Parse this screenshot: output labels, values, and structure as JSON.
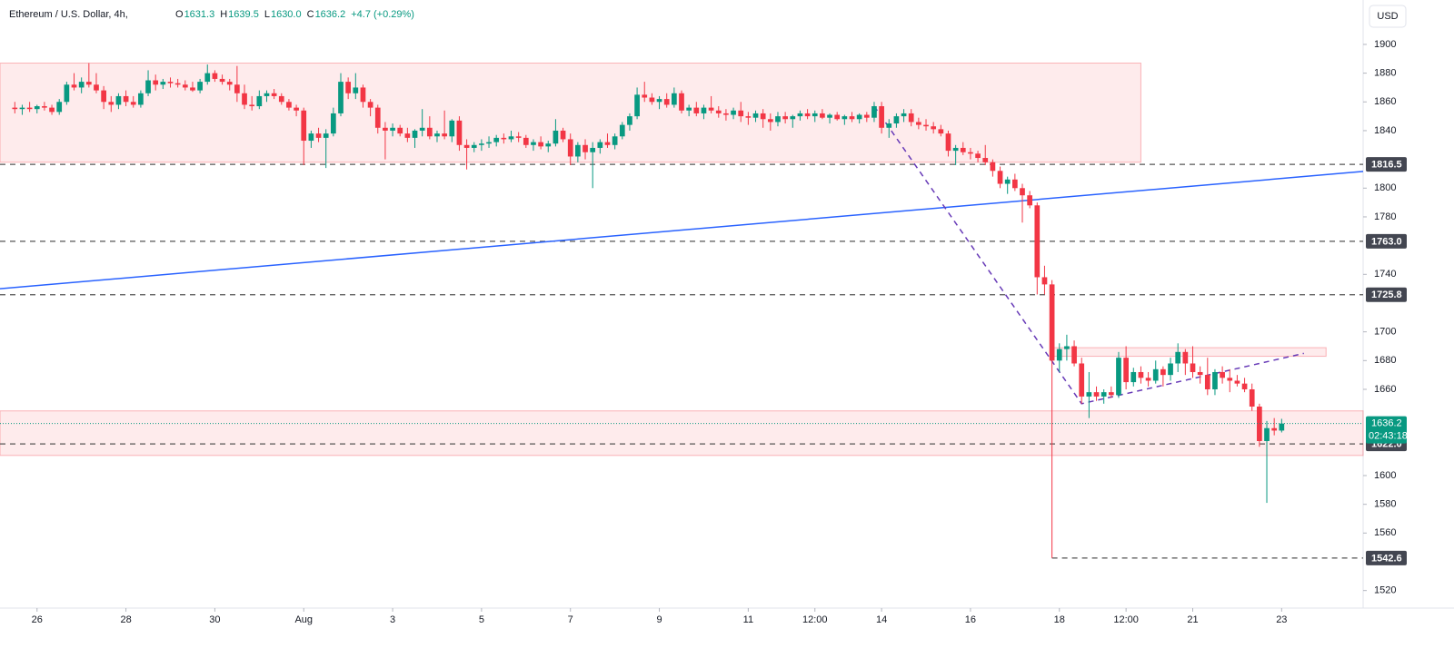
{
  "header": {
    "symbol": "Ethereum / U.S. Dollar, 4h,",
    "ohlc": [
      {
        "label": "O",
        "value": "1631.3"
      },
      {
        "label": "H",
        "value": "1639.5"
      },
      {
        "label": "L",
        "value": "1630.0"
      },
      {
        "label": "C",
        "value": "1636.2"
      }
    ],
    "change": "+4.7 (+0.29%)",
    "currency": "USD"
  },
  "chart_data": {
    "type": "candlestick",
    "up_color": "#089981",
    "down_color": "#f23645",
    "ylim": [
      1507.8,
      1930.9
    ],
    "yticks": [
      1520,
      1560,
      1580,
      1600,
      1660,
      1680,
      1700,
      1740,
      1780,
      1800,
      1840,
      1860,
      1880,
      1900
    ],
    "xlim": [
      -2,
      182
    ],
    "xticks": [
      {
        "value": 3,
        "label": "26"
      },
      {
        "value": 15,
        "label": "28"
      },
      {
        "value": 27,
        "label": "30"
      },
      {
        "value": 39,
        "label": "Aug"
      },
      {
        "value": 51,
        "label": "3"
      },
      {
        "value": 63,
        "label": "5"
      },
      {
        "value": 75,
        "label": "7"
      },
      {
        "value": 87,
        "label": "9"
      },
      {
        "value": 99,
        "label": "11"
      },
      {
        "value": 108,
        "label": "12:00"
      },
      {
        "value": 117,
        "label": "14"
      },
      {
        "value": 129,
        "label": "16"
      },
      {
        "value": 141,
        "label": "18"
      },
      {
        "value": 150,
        "label": "12:00"
      },
      {
        "value": 159,
        "label": "21"
      },
      {
        "value": 171,
        "label": "23"
      }
    ],
    "grid": false,
    "candles": [
      [
        1856,
        1860,
        1852,
        1855
      ],
      [
        1855,
        1858,
        1851,
        1856
      ],
      [
        1856,
        1860,
        1853,
        1855
      ],
      [
        1855,
        1858,
        1852,
        1857
      ],
      [
        1857,
        1860,
        1854,
        1856
      ],
      [
        1856,
        1858,
        1851,
        1853
      ],
      [
        1853,
        1862,
        1851,
        1860
      ],
      [
        1860,
        1874,
        1858,
        1872
      ],
      [
        1872,
        1880,
        1868,
        1870
      ],
      [
        1870,
        1877,
        1866,
        1874
      ],
      [
        1874,
        1887,
        1870,
        1872
      ],
      [
        1872,
        1880,
        1866,
        1868
      ],
      [
        1868,
        1871,
        1855,
        1860
      ],
      [
        1860,
        1864,
        1853,
        1858
      ],
      [
        1858,
        1866,
        1855,
        1864
      ],
      [
        1864,
        1868,
        1857,
        1860
      ],
      [
        1860,
        1864,
        1856,
        1858
      ],
      [
        1858,
        1868,
        1856,
        1866
      ],
      [
        1866,
        1882,
        1864,
        1875
      ],
      [
        1875,
        1879,
        1868,
        1872
      ],
      [
        1872,
        1876,
        1869,
        1874
      ],
      [
        1874,
        1877,
        1870,
        1873
      ],
      [
        1873,
        1876,
        1870,
        1872
      ],
      [
        1872,
        1875,
        1868,
        1870
      ],
      [
        1870,
        1874,
        1867,
        1868
      ],
      [
        1868,
        1876,
        1866,
        1874
      ],
      [
        1874,
        1886,
        1872,
        1880
      ],
      [
        1880,
        1882,
        1874,
        1876
      ],
      [
        1876,
        1879,
        1872,
        1874
      ],
      [
        1874,
        1876,
        1868,
        1872
      ],
      [
        1872,
        1885,
        1860,
        1866
      ],
      [
        1866,
        1872,
        1855,
        1858
      ],
      [
        1858,
        1864,
        1854,
        1857
      ],
      [
        1857,
        1868,
        1855,
        1864
      ],
      [
        1864,
        1868,
        1860,
        1866
      ],
      [
        1866,
        1869,
        1862,
        1864
      ],
      [
        1864,
        1866,
        1858,
        1860
      ],
      [
        1860,
        1862,
        1854,
        1856
      ],
      [
        1856,
        1858,
        1850,
        1854
      ],
      [
        1854,
        1856,
        1816,
        1833
      ],
      [
        1833,
        1840,
        1828,
        1838
      ],
      [
        1838,
        1842,
        1832,
        1835
      ],
      [
        1835,
        1841,
        1814,
        1838
      ],
      [
        1838,
        1856,
        1836,
        1852
      ],
      [
        1852,
        1880,
        1850,
        1874
      ],
      [
        1874,
        1877,
        1862,
        1866
      ],
      [
        1866,
        1880,
        1862,
        1870
      ],
      [
        1870,
        1872,
        1856,
        1860
      ],
      [
        1860,
        1862,
        1850,
        1856
      ],
      [
        1856,
        1858,
        1838,
        1842
      ],
      [
        1842,
        1846,
        1820,
        1840
      ],
      [
        1840,
        1845,
        1836,
        1842
      ],
      [
        1842,
        1844,
        1836,
        1838
      ],
      [
        1838,
        1842,
        1832,
        1835
      ],
      [
        1835,
        1841,
        1828,
        1840
      ],
      [
        1840,
        1855,
        1836,
        1842
      ],
      [
        1842,
        1850,
        1834,
        1836
      ],
      [
        1836,
        1840,
        1832,
        1838
      ],
      [
        1838,
        1854,
        1834,
        1836
      ],
      [
        1836,
        1848,
        1832,
        1847
      ],
      [
        1847,
        1850,
        1826,
        1830
      ],
      [
        1830,
        1834,
        1813,
        1828
      ],
      [
        1828,
        1832,
        1825,
        1830
      ],
      [
        1830,
        1834,
        1826,
        1831
      ],
      [
        1831,
        1836,
        1828,
        1832
      ],
      [
        1832,
        1837,
        1829,
        1835
      ],
      [
        1835,
        1838,
        1831,
        1834
      ],
      [
        1834,
        1840,
        1832,
        1836
      ],
      [
        1836,
        1839,
        1832,
        1835
      ],
      [
        1835,
        1837,
        1828,
        1830
      ],
      [
        1830,
        1834,
        1826,
        1832
      ],
      [
        1832,
        1836,
        1827,
        1829
      ],
      [
        1829,
        1833,
        1825,
        1831
      ],
      [
        1831,
        1848,
        1829,
        1840
      ],
      [
        1840,
        1842,
        1832,
        1834
      ],
      [
        1834,
        1838,
        1816,
        1822
      ],
      [
        1822,
        1832,
        1818,
        1830
      ],
      [
        1830,
        1834,
        1820,
        1825
      ],
      [
        1825,
        1832,
        1800,
        1828
      ],
      [
        1828,
        1834,
        1824,
        1832
      ],
      [
        1832,
        1838,
        1828,
        1830
      ],
      [
        1830,
        1838,
        1827,
        1836
      ],
      [
        1836,
        1846,
        1834,
        1844
      ],
      [
        1844,
        1852,
        1840,
        1850
      ],
      [
        1850,
        1870,
        1848,
        1865
      ],
      [
        1865,
        1874,
        1860,
        1863
      ],
      [
        1863,
        1866,
        1858,
        1860
      ],
      [
        1860,
        1864,
        1855,
        1862
      ],
      [
        1862,
        1866,
        1856,
        1858
      ],
      [
        1858,
        1870,
        1856,
        1866
      ],
      [
        1866,
        1868,
        1852,
        1854
      ],
      [
        1854,
        1858,
        1850,
        1856
      ],
      [
        1856,
        1860,
        1850,
        1852
      ],
      [
        1852,
        1858,
        1848,
        1856
      ],
      [
        1856,
        1864,
        1852,
        1854
      ],
      [
        1854,
        1857,
        1849,
        1852
      ],
      [
        1852,
        1855,
        1847,
        1851
      ],
      [
        1851,
        1856,
        1848,
        1854
      ],
      [
        1854,
        1860,
        1846,
        1850
      ],
      [
        1850,
        1853,
        1844,
        1849
      ],
      [
        1849,
        1854,
        1846,
        1852
      ],
      [
        1852,
        1855,
        1842,
        1848
      ],
      [
        1848,
        1852,
        1840,
        1846
      ],
      [
        1846,
        1853,
        1843,
        1850
      ],
      [
        1850,
        1853,
        1845,
        1848
      ],
      [
        1848,
        1851,
        1842,
        1850
      ],
      [
        1850,
        1854,
        1847,
        1852
      ],
      [
        1852,
        1855,
        1848,
        1850
      ],
      [
        1850,
        1854,
        1846,
        1852
      ],
      [
        1852,
        1855,
        1848,
        1849
      ],
      [
        1849,
        1852,
        1845,
        1851
      ],
      [
        1851,
        1853,
        1847,
        1848
      ],
      [
        1848,
        1851,
        1844,
        1850
      ],
      [
        1850,
        1853,
        1846,
        1848
      ],
      [
        1848,
        1852,
        1845,
        1851
      ],
      [
        1851,
        1853,
        1846,
        1849
      ],
      [
        1849,
        1860,
        1846,
        1857
      ],
      [
        1857,
        1860,
        1838,
        1842
      ],
      [
        1842,
        1848,
        1835,
        1845
      ],
      [
        1845,
        1852,
        1842,
        1850
      ],
      [
        1850,
        1855,
        1846,
        1852
      ],
      [
        1852,
        1855,
        1843,
        1846
      ],
      [
        1846,
        1849,
        1841,
        1844
      ],
      [
        1844,
        1848,
        1840,
        1843
      ],
      [
        1843,
        1846,
        1838,
        1841
      ],
      [
        1841,
        1844,
        1836,
        1838
      ],
      [
        1838,
        1840,
        1822,
        1826
      ],
      [
        1826,
        1830,
        1816,
        1828
      ],
      [
        1828,
        1832,
        1823,
        1825
      ],
      [
        1825,
        1828,
        1820,
        1824
      ],
      [
        1824,
        1826,
        1818,
        1821
      ],
      [
        1821,
        1830,
        1816,
        1818
      ],
      [
        1818,
        1820,
        1808,
        1812
      ],
      [
        1812,
        1815,
        1800,
        1803
      ],
      [
        1803,
        1808,
        1796,
        1806
      ],
      [
        1806,
        1810,
        1798,
        1800
      ],
      [
        1800,
        1803,
        1776,
        1795
      ],
      [
        1795,
        1798,
        1786,
        1788
      ],
      [
        1788,
        1790,
        1726,
        1738
      ],
      [
        1738,
        1746,
        1726,
        1733
      ],
      [
        1733,
        1736,
        1542.6,
        1680
      ],
      [
        1680,
        1692,
        1672,
        1688
      ],
      [
        1688,
        1698,
        1680,
        1690
      ],
      [
        1690,
        1694,
        1676,
        1678
      ],
      [
        1678,
        1682,
        1650,
        1655
      ],
      [
        1655,
        1672,
        1640,
        1658
      ],
      [
        1658,
        1662,
        1652,
        1655
      ],
      [
        1655,
        1660,
        1650,
        1658
      ],
      [
        1658,
        1662,
        1654,
        1656
      ],
      [
        1656,
        1686,
        1654,
        1682
      ],
      [
        1682,
        1690,
        1660,
        1665
      ],
      [
        1665,
        1675,
        1662,
        1672
      ],
      [
        1672,
        1676,
        1664,
        1668
      ],
      [
        1668,
        1672,
        1662,
        1666
      ],
      [
        1666,
        1680,
        1664,
        1674
      ],
      [
        1674,
        1676,
        1662,
        1670
      ],
      [
        1670,
        1682,
        1666,
        1678
      ],
      [
        1678,
        1692,
        1672,
        1686
      ],
      [
        1686,
        1688,
        1670,
        1678
      ],
      [
        1678,
        1690,
        1668,
        1672
      ],
      [
        1672,
        1676,
        1664,
        1670
      ],
      [
        1670,
        1682,
        1656,
        1660
      ],
      [
        1660,
        1674,
        1656,
        1672
      ],
      [
        1672,
        1676,
        1664,
        1668
      ],
      [
        1668,
        1674,
        1658,
        1666
      ],
      [
        1666,
        1670,
        1662,
        1664
      ],
      [
        1664,
        1668,
        1658,
        1660
      ],
      [
        1660,
        1664,
        1645,
        1648
      ],
      [
        1648,
        1650,
        1620,
        1624
      ],
      [
        1624,
        1638,
        1581,
        1633
      ],
      [
        1633,
        1640,
        1628,
        1631.3
      ],
      [
        1631.3,
        1639.5,
        1630,
        1636.2
      ]
    ],
    "zones": [
      {
        "top": 1887,
        "bottom": 1818,
        "from": -2,
        "to": 152
      },
      {
        "top": 1645,
        "bottom": 1614,
        "from": -2,
        "to": 182
      },
      {
        "top": 1689,
        "bottom": 1683,
        "from": 140,
        "to": 177
      }
    ],
    "trendlines": [
      {
        "color": "#2962ff",
        "dashed": false,
        "points": [
          [
            -2,
            1730
          ],
          [
            182,
            1811.6
          ]
        ]
      },
      {
        "color": "#673ab7",
        "dashed": true,
        "points": [
          [
            116,
            1857
          ],
          [
            144,
            1650
          ],
          [
            174,
            1685
          ]
        ]
      }
    ],
    "levels": [
      {
        "value": 1816.5,
        "label": "1816.5",
        "from": -2
      },
      {
        "value": 1763,
        "label": "1763.0",
        "from": -2
      },
      {
        "value": 1725.8,
        "label": "1725.8",
        "from": -2
      },
      {
        "value": 1622,
        "label": "1622.0",
        "from": -2
      },
      {
        "value": 1542.6,
        "label": "1542.6",
        "from": 140
      }
    ],
    "last_price": {
      "value": 1636.2,
      "label": "1636.2",
      "countdown": "02:43:18"
    }
  }
}
